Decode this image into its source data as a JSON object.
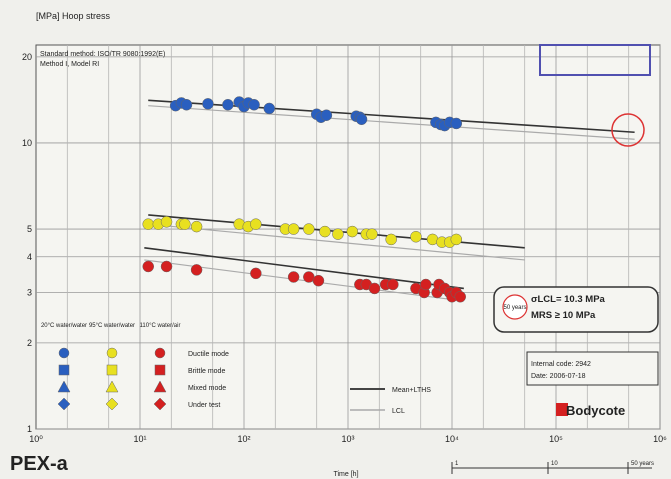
{
  "chart_data": {
    "type": "scatter",
    "title": "",
    "ylabel": "[MPa] Hoop stress",
    "xlabel": "Time [h]",
    "xscale": "log",
    "yscale": "log",
    "xlim": [
      1,
      1000000
    ],
    "ylim": [
      1,
      22
    ],
    "grid": true,
    "x_ticks": [
      "10⁰",
      "10¹",
      "10²",
      "10³",
      "10⁴",
      "10⁵",
      "10⁶"
    ],
    "y_ticks": [
      "1",
      "2",
      "3",
      "4",
      "5",
      "10",
      "20"
    ],
    "time_scale_labels": [
      "1",
      "10",
      "50 years"
    ],
    "method_text": [
      "Standard method: ISO/TR 9080:1992(E)",
      "Method I, Model RI"
    ],
    "result": {
      "lcl_label": "σLCL= 10.3 MPa",
      "mrs_label": "MRS ≥ 10 MPa",
      "circle_label": "50 years"
    },
    "info": {
      "code": "Internal code: 2942",
      "date": "Date: 2006-07-18"
    },
    "logo": "Bodycote",
    "legend": {
      "temps": [
        "20°C water/water",
        "95°C water/water",
        "110°C water/air"
      ],
      "temp_colors": [
        "#2a5fbf",
        "#e8e020",
        "#d42020"
      ],
      "modes": [
        "Ductile mode",
        "Brittle mode",
        "Mixed mode",
        "Under test"
      ],
      "mode_markers": [
        "circle",
        "square",
        "triangle",
        "diamond"
      ],
      "lines": [
        "Mean+LTHS",
        "LCL"
      ]
    },
    "series": [
      {
        "color": "#2a5fbf",
        "points": [
          [
            22,
            13.5
          ],
          [
            25,
            13.8
          ],
          [
            28,
            13.6
          ],
          [
            45,
            13.7
          ],
          [
            70,
            13.6
          ],
          [
            90,
            13.9
          ],
          [
            100,
            13.4
          ],
          [
            110,
            13.8
          ],
          [
            125,
            13.6
          ],
          [
            175,
            13.2
          ],
          [
            500,
            12.6
          ],
          [
            550,
            12.3
          ],
          [
            620,
            12.5
          ],
          [
            1200,
            12.4
          ],
          [
            1300,
            12.3
          ],
          [
            1350,
            12.1
          ],
          [
            7000,
            11.8
          ],
          [
            7800,
            11.6
          ],
          [
            8500,
            11.5
          ],
          [
            9500,
            11.8
          ],
          [
            11000,
            11.7
          ]
        ],
        "mean_line": [
          [
            12,
            14.1
          ],
          [
            570000,
            10.9
          ]
        ],
        "lcl_line": [
          [
            12,
            13.5
          ],
          [
            570000,
            10.3
          ]
        ]
      },
      {
        "color": "#e8e020",
        "points": [
          [
            12,
            5.2
          ],
          [
            15,
            5.2
          ],
          [
            18,
            5.3
          ],
          [
            25,
            5.2
          ],
          [
            27,
            5.2
          ],
          [
            35,
            5.1
          ],
          [
            90,
            5.2
          ],
          [
            110,
            5.1
          ],
          [
            130,
            5.2
          ],
          [
            250,
            5.0
          ],
          [
            300,
            5.0
          ],
          [
            420,
            5.0
          ],
          [
            600,
            4.9
          ],
          [
            800,
            4.8
          ],
          [
            1100,
            4.9
          ],
          [
            1500,
            4.8
          ],
          [
            1700,
            4.8
          ],
          [
            2600,
            4.6
          ],
          [
            4500,
            4.7
          ],
          [
            6500,
            4.6
          ],
          [
            8000,
            4.5
          ],
          [
            9500,
            4.5
          ],
          [
            11000,
            4.6
          ]
        ],
        "mean_line": [
          [
            12,
            5.6
          ],
          [
            50000,
            4.3
          ]
        ],
        "lcl_line": [
          [
            12,
            5.2
          ],
          [
            50000,
            3.9
          ]
        ]
      },
      {
        "color": "#d42020",
        "points": [
          [
            12,
            3.7
          ],
          [
            18,
            3.7
          ],
          [
            35,
            3.6
          ],
          [
            130,
            3.5
          ],
          [
            300,
            3.4
          ],
          [
            420,
            3.4
          ],
          [
            520,
            3.3
          ],
          [
            1300,
            3.2
          ],
          [
            1500,
            3.2
          ],
          [
            1800,
            3.1
          ],
          [
            2300,
            3.2
          ],
          [
            2700,
            3.2
          ],
          [
            4500,
            3.1
          ],
          [
            5400,
            3.0
          ],
          [
            5600,
            3.2
          ],
          [
            7200,
            3.0
          ],
          [
            7500,
            3.2
          ],
          [
            8500,
            3.1
          ],
          [
            9500,
            3.0
          ],
          [
            10000,
            2.9
          ],
          [
            11000,
            3.0
          ],
          [
            12000,
            2.9
          ]
        ],
        "mean_line": [
          [
            11,
            4.3
          ],
          [
            13000,
            3.1
          ]
        ],
        "lcl_line": [
          [
            11,
            3.9
          ],
          [
            13000,
            2.8
          ]
        ]
      }
    ]
  },
  "footer": {
    "label": "PEX-a"
  }
}
